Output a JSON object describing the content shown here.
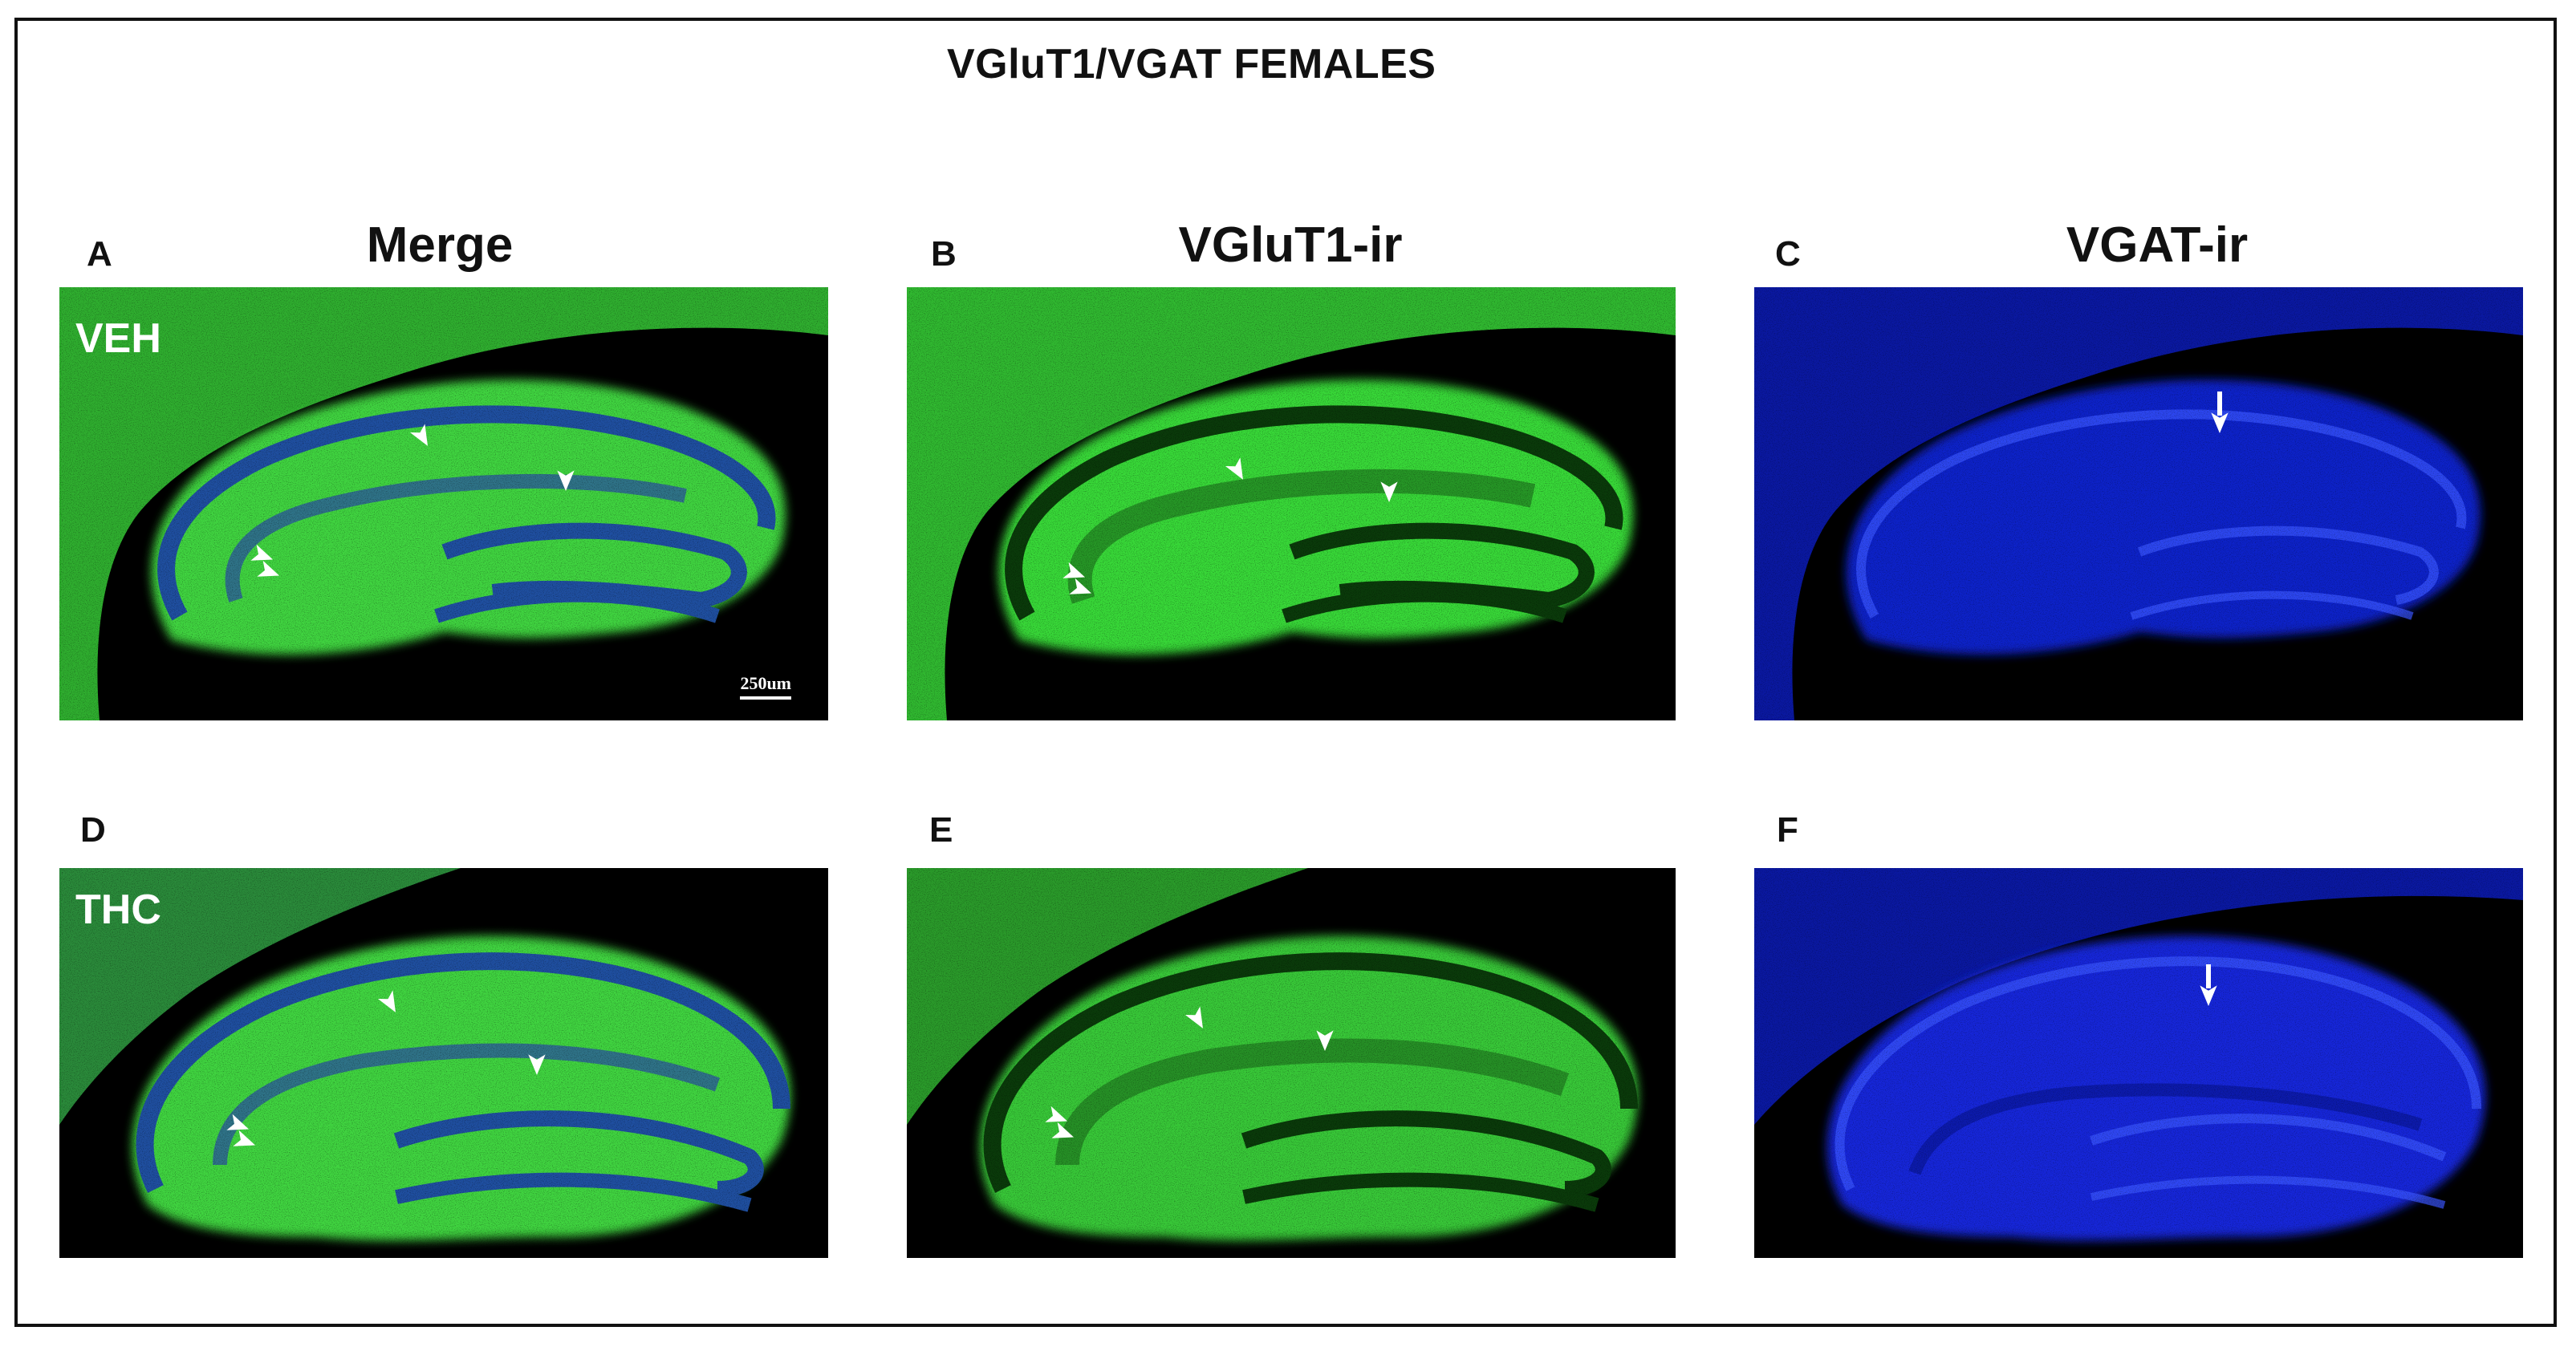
{
  "figure": {
    "title": "VGluT1/VGAT FEMALES",
    "columns": [
      {
        "letter_top": "A",
        "letter_bottom": "D",
        "header": "Merge"
      },
      {
        "letter_top": "B",
        "letter_bottom": "E",
        "header": "VGluT1-ir"
      },
      {
        "letter_top": "C",
        "letter_bottom": "F",
        "header": "VGAT-ir"
      }
    ],
    "rows": [
      {
        "label": "VEH"
      },
      {
        "label": "THC"
      }
    ],
    "scale_bar": "250um"
  },
  "colors": {
    "merge_field": "#3fd43f",
    "merge_layer": "#1f4fa0",
    "vglut_field": "#38d838",
    "vglut_layer": "#0a3a0a",
    "vgat_field": "#1020c8",
    "vgat_layer": "#3a55ff",
    "background": "#000000"
  },
  "icons": {
    "arrowhead": "white-arrowhead-icon",
    "arrow": "white-arrow-icon"
  }
}
